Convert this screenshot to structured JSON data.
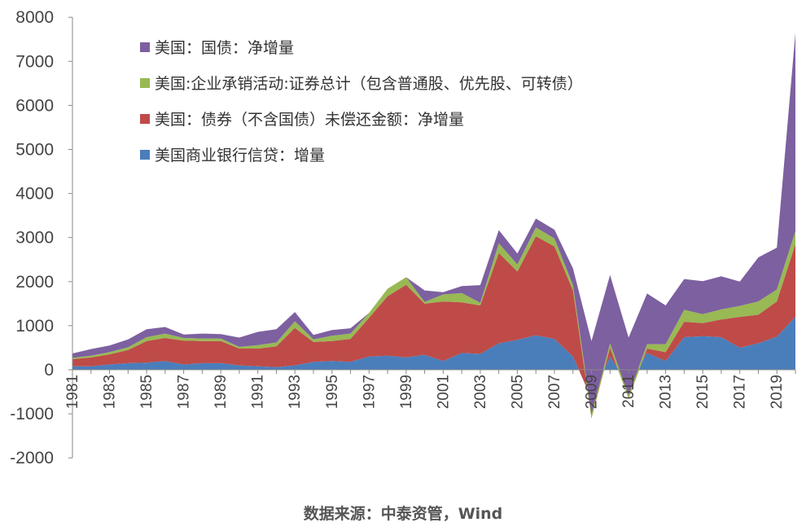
{
  "chart_data": {
    "type": "area",
    "stacked": true,
    "x": [
      1981,
      1982,
      1983,
      1984,
      1985,
      1986,
      1987,
      1988,
      1989,
      1990,
      1991,
      1992,
      1993,
      1994,
      1995,
      1996,
      1997,
      1998,
      1999,
      2000,
      2001,
      2002,
      2003,
      2004,
      2005,
      2006,
      2007,
      2008,
      2009,
      2010,
      2011,
      2012,
      2013,
      2014,
      2015,
      2016,
      2017,
      2018,
      2019,
      2020
    ],
    "xtick_labels": [
      "1981",
      "1983",
      "1985",
      "1987",
      "1989",
      "1991",
      "1993",
      "1995",
      "1997",
      "1999",
      "2001",
      "2003",
      "2005",
      "2007",
      "2009",
      "2011",
      "2013",
      "2015",
      "2017",
      "2019"
    ],
    "ylim": [
      -2000,
      8000
    ],
    "yticks": [
      -2000,
      -1000,
      0,
      1000,
      2000,
      3000,
      4000,
      5000,
      6000,
      7000,
      8000
    ],
    "grid": false,
    "legend_position": "top-left",
    "series": [
      {
        "name": "美国商业银行信贷：增量",
        "color": "#4a7ebb",
        "values": [
          80,
          80,
          120,
          150,
          160,
          200,
          120,
          150,
          150,
          100,
          80,
          60,
          100,
          180,
          200,
          180,
          300,
          320,
          280,
          340,
          200,
          380,
          360,
          600,
          680,
          780,
          700,
          300,
          -650,
          300,
          -350,
          380,
          200,
          740,
          760,
          740,
          500,
          600,
          750,
          1200
        ]
      },
      {
        "name": "美国：债券（不含国债）未偿还金额：净增量",
        "color": "#be4b48",
        "values": [
          160,
          200,
          230,
          300,
          490,
          520,
          540,
          500,
          500,
          380,
          400,
          470,
          850,
          450,
          450,
          520,
          880,
          1350,
          1650,
          1160,
          1350,
          1150,
          1100,
          2050,
          1550,
          2250,
          2100,
          1500,
          -450,
          200,
          -300,
          100,
          200,
          350,
          300,
          400,
          700,
          650,
          800,
          1650
        ]
      },
      {
        "name": "美国:企业承销活动:证券总计（包含普通股、优先股、可转债）",
        "color": "#98b954",
        "values": [
          30,
          40,
          50,
          60,
          90,
          100,
          60,
          60,
          60,
          40,
          80,
          90,
          150,
          60,
          120,
          120,
          110,
          170,
          170,
          40,
          160,
          210,
          60,
          220,
          160,
          200,
          180,
          120,
          100,
          100,
          80,
          100,
          180,
          270,
          200,
          230,
          250,
          300,
          270,
          300
        ]
      },
      {
        "name": "美国：国债：净增量",
        "color": "#7d60a0",
        "values": [
          100,
          150,
          150,
          180,
          180,
          150,
          80,
          110,
          100,
          210,
          300,
          300,
          210,
          100,
          130,
          120,
          0,
          0,
          0,
          260,
          50,
          160,
          400,
          300,
          250,
          200,
          200,
          380,
          1650,
          1550,
          1300,
          1150,
          880,
          700,
          750,
          750,
          550,
          1000,
          950,
          4500
        ]
      }
    ],
    "source": "数据来源：中泰资管，Wind"
  }
}
